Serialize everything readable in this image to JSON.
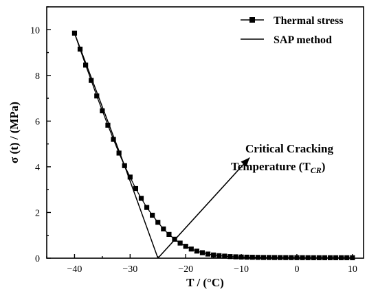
{
  "chart_data": {
    "type": "scatter",
    "xlabel": "T / (°C)",
    "ylabel": "σ (t) / (MPa)",
    "xlim": [
      -45,
      12
    ],
    "ylim": [
      0,
      11
    ],
    "xticks": [
      -40,
      -30,
      -20,
      -10,
      0,
      10
    ],
    "yticks": [
      0,
      2,
      4,
      6,
      8,
      10
    ],
    "legend_position": "top-right",
    "series": [
      {
        "name": "Thermal stress",
        "marker": "square",
        "line": true,
        "x": [
          -40,
          -39,
          -38,
          -37,
          -36,
          -35,
          -34,
          -33,
          -32,
          -31,
          -30,
          -29,
          -28,
          -27,
          -26,
          -25,
          -24,
          -23,
          -22,
          -21,
          -20,
          -19,
          -18,
          -17,
          -16,
          -15,
          -14,
          -13,
          -12,
          -11,
          -10,
          -9,
          -8,
          -7,
          -6,
          -5,
          -4,
          -3,
          -2,
          -1,
          0,
          1,
          2,
          3,
          4,
          5,
          6,
          7,
          8,
          9,
          10
        ],
        "y": [
          9.85,
          9.15,
          8.45,
          7.78,
          7.1,
          6.45,
          5.82,
          5.2,
          4.6,
          4.05,
          3.55,
          3.05,
          2.62,
          2.22,
          1.88,
          1.57,
          1.28,
          1.04,
          0.83,
          0.66,
          0.52,
          0.4,
          0.31,
          0.24,
          0.18,
          0.14,
          0.11,
          0.09,
          0.07,
          0.06,
          0.05,
          0.045,
          0.04,
          0.035,
          0.03,
          0.03,
          0.028,
          0.026,
          0.025,
          0.024,
          0.023,
          0.022,
          0.021,
          0.02,
          0.02,
          0.02,
          0.02,
          0.02,
          0.02,
          0.02,
          0.02
        ]
      },
      {
        "name": "SAP method",
        "marker": "none",
        "line": true,
        "x": [
          -40,
          -31,
          -25,
          -25
        ],
        "y": [
          9.85,
          4.05,
          0,
          0
        ]
      }
    ],
    "annotations": [
      {
        "text_line1": "Critical Cracking",
        "text_line2": "Temperature (T",
        "subscript": "CR",
        "close": ")",
        "arrow_from": [
          -25,
          0
        ],
        "arrow_to": [
          -8.5,
          4.4
        ]
      }
    ]
  }
}
